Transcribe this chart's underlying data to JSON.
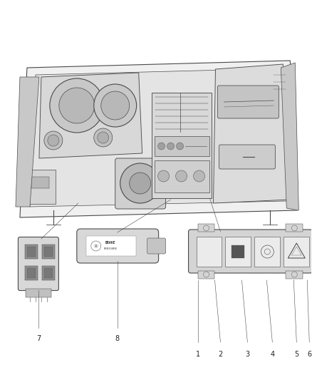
{
  "bg_color": "#ffffff",
  "line_color": "#4a4a4a",
  "gray1": "#cccccc",
  "gray2": "#aaaaaa",
  "gray3": "#888888",
  "gray4": "#666666",
  "gray5": "#e8e8e8",
  "gray6": "#d4d4d4",
  "label_color": "#222222",
  "figsize": [
    4.38,
    5.33
  ],
  "dpi": 100,
  "lw_main": 0.8,
  "lw_thin": 0.5,
  "lw_thick": 1.2
}
